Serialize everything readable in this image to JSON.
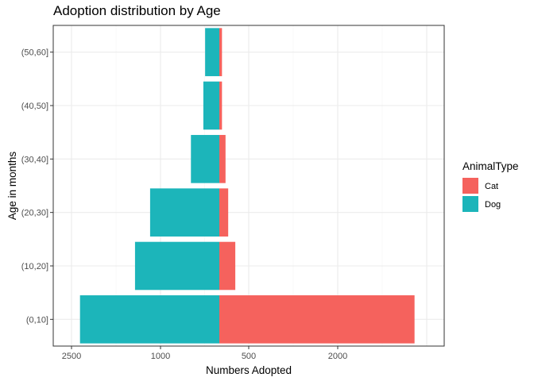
{
  "chart_data": {
    "type": "bar",
    "orientation": "horizontal",
    "layout": "diverging-pyramid",
    "title": "Adoption distribution by Age",
    "xlabel": "Numbers Adopted",
    "ylabel": "Age in months",
    "categories": [
      "(0,10]",
      "(10,20]",
      "(20,30]",
      "(30,40]",
      "(40,50]",
      "(50,60]"
    ],
    "series": [
      {
        "name": "Dog",
        "direction": "left",
        "color": "#1CB5BA",
        "values": [
          785,
          475,
          390,
          160,
          90,
          80
        ]
      },
      {
        "name": "Cat",
        "direction": "right",
        "color": "#F5625D",
        "values": [
          1100,
          90,
          50,
          35,
          15,
          15
        ]
      }
    ],
    "x_ticks": [
      {
        "value": -2500,
        "label": "2500"
      },
      {
        "value": -2000,
        "label": "1000"
      },
      {
        "value": -1500,
        "label": "500"
      },
      {
        "value": -1000,
        "label": "2000"
      }
    ],
    "x_tick_positions": [
      -2500,
      -2000,
      -1500,
      -1000
    ],
    "xlim": [
      -2600,
      -600
    ],
    "zero_at_tick": 0,
    "grid": true,
    "theme": "bw",
    "legend": {
      "title": "AnimalType",
      "position": "right",
      "items": [
        "Cat",
        "Dog"
      ]
    }
  }
}
